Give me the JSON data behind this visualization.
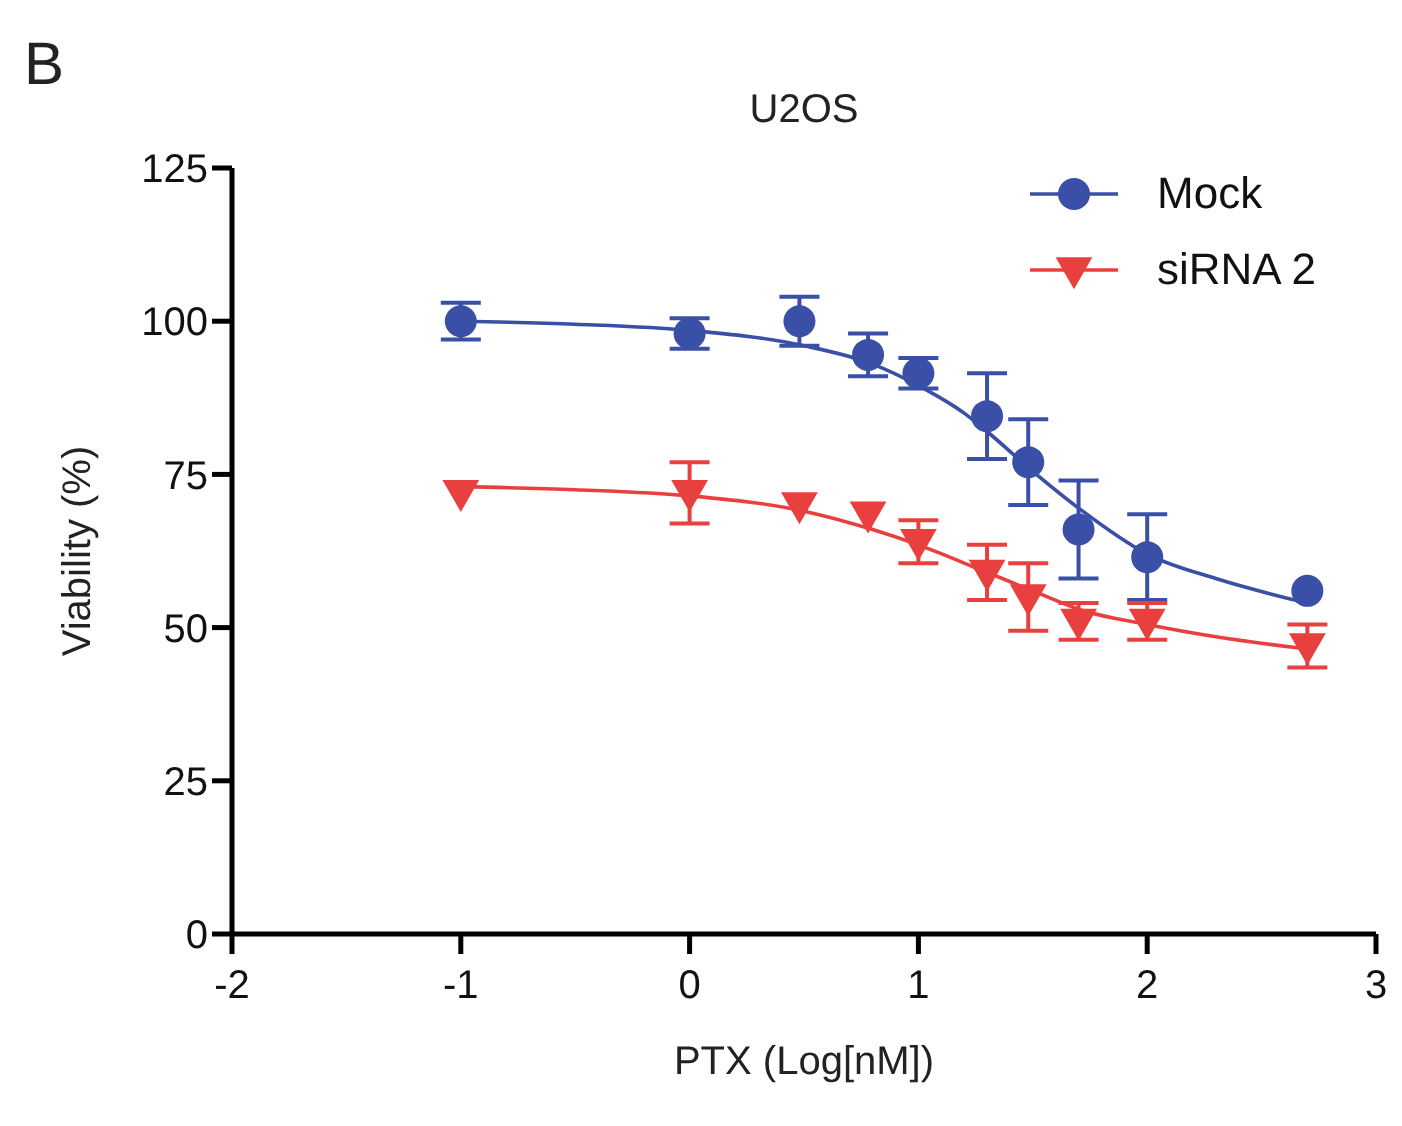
{
  "chart_data": {
    "type": "scatter",
    "title": "U2OS",
    "xlabel": "PTX (Log[nM])",
    "ylabel": "Viability (%)",
    "annotations": [
      "B"
    ],
    "xlim": [
      -2,
      3
    ],
    "xticks": [
      -2,
      -1,
      0,
      1,
      2,
      3
    ],
    "ylim": [
      0,
      125
    ],
    "yticks": [
      0,
      25,
      50,
      75,
      100,
      125
    ],
    "grid": false,
    "legend": "top right",
    "series": [
      {
        "name": "Mock",
        "marker": "circle",
        "color": "#3a4fa6",
        "x": [
          -1,
          0,
          0.48,
          0.78,
          1,
          1.3,
          1.48,
          1.7,
          2,
          2.7
        ],
        "values": [
          100,
          98,
          100,
          94.5,
          91.5,
          84.5,
          77,
          66,
          61.5,
          56
        ],
        "errors": [
          3,
          2.5,
          4,
          3.5,
          2.5,
          7,
          7,
          8,
          7,
          null
        ]
      },
      {
        "name": "siRNA 2",
        "marker": "triangle",
        "color": "#e8403f",
        "x": [
          -1,
          0,
          0.48,
          0.78,
          1,
          1.3,
          1.48,
          1.7,
          2,
          2.7
        ],
        "values": [
          72,
          72,
          70,
          68.5,
          64,
          59,
          55,
          51,
          51,
          47
        ],
        "errors": [
          null,
          5,
          null,
          null,
          3.5,
          4.5,
          5.5,
          3,
          3,
          3.5
        ]
      },
      {
        "type": "line",
        "color": "#3a4fa6",
        "x": [
          -1,
          -0.5,
          0,
          0.5,
          0.8,
          1,
          1.2,
          1.3,
          1.5,
          1.7,
          2,
          2.3,
          2.7
        ],
        "values": [
          100,
          99.5,
          98.5,
          96,
          93,
          89.5,
          85,
          82,
          75.5,
          69.5,
          62,
          58,
          54
        ]
      },
      {
        "type": "line",
        "color": "#e8403f",
        "x": [
          -1,
          -0.5,
          0,
          0.5,
          0.8,
          1,
          1.3,
          1.5,
          1.7,
          2,
          2.3,
          2.7
        ],
        "values": [
          73,
          72.5,
          71.5,
          69,
          66,
          63.5,
          59,
          56,
          53,
          50.5,
          48.5,
          46.5
        ]
      }
    ]
  }
}
